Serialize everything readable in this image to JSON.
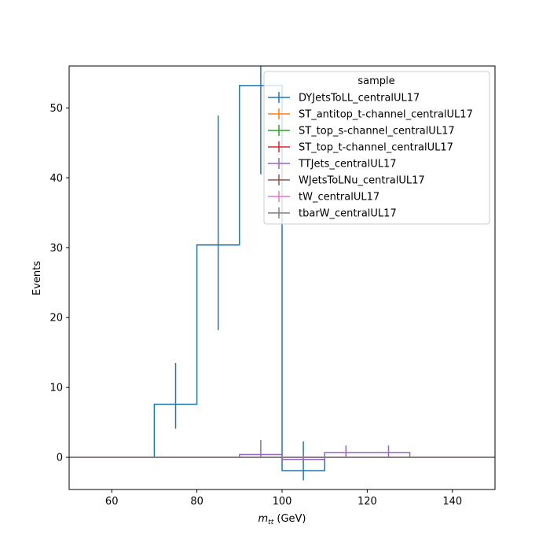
{
  "chart_data": {
    "type": "line",
    "xlabel_base": "m",
    "xlabel_sub": "tt",
    "xlabel_unit": " (GeV)",
    "ylabel": "Events",
    "xlim": [
      50,
      150
    ],
    "ylim": [
      -4.6,
      56
    ],
    "xticks": [
      60,
      80,
      100,
      120,
      140
    ],
    "yticks": [
      0,
      10,
      20,
      30,
      40,
      50
    ],
    "legend_title": "sample",
    "legend_position": "top-right",
    "grid": false,
    "series": [
      {
        "name": "DYJetsToLL_centralUL17",
        "color": "#1f77b4",
        "edges": [
          50,
          70,
          80,
          90,
          100,
          110,
          150
        ],
        "values": [
          0,
          7.6,
          30.4,
          53.2,
          -1.9,
          0
        ],
        "errors": [
          {
            "x": 75,
            "y": 7.6,
            "lo": 4.1,
            "hi": 13.5
          },
          {
            "x": 85,
            "y": 30.4,
            "lo": 18.2,
            "hi": 48.9
          },
          {
            "x": 95,
            "y": 53.2,
            "lo": 40.5,
            "hi": 56
          },
          {
            "x": 105,
            "y": -1.9,
            "lo": -3.3,
            "hi": 2.3
          }
        ]
      },
      {
        "name": "ST_antitop_t-channel_centralUL17",
        "color": "#ff7f0e",
        "edges": [
          50,
          150
        ],
        "values": [
          0
        ],
        "errors": []
      },
      {
        "name": "ST_top_s-channel_centralUL17",
        "color": "#2ca02c",
        "edges": [
          50,
          150
        ],
        "values": [
          0
        ],
        "errors": []
      },
      {
        "name": "ST_top_t-channel_centralUL17",
        "color": "#d62728",
        "edges": [
          50,
          150
        ],
        "values": [
          0
        ],
        "errors": []
      },
      {
        "name": "TTJets_centralUL17",
        "color": "#9467bd",
        "edges": [
          50,
          90,
          100,
          110,
          120,
          130,
          150
        ],
        "values": [
          0,
          0.4,
          -0.3,
          0.7,
          0.7,
          0
        ],
        "errors": [
          {
            "x": 95,
            "y": 0.4,
            "lo": 0.0,
            "hi": 2.5
          },
          {
            "x": 105,
            "y": -0.3,
            "lo": -0.5,
            "hi": 0.5
          },
          {
            "x": 115,
            "y": 0.7,
            "lo": 0.0,
            "hi": 1.7
          },
          {
            "x": 125,
            "y": 0.7,
            "lo": 0.0,
            "hi": 1.7
          }
        ]
      },
      {
        "name": "WJetsToLNu_centralUL17",
        "color": "#8c564b",
        "edges": [
          50,
          150
        ],
        "values": [
          0
        ],
        "errors": []
      },
      {
        "name": "tW_centralUL17",
        "color": "#e377c2",
        "edges": [
          50,
          150
        ],
        "values": [
          0
        ],
        "errors": []
      },
      {
        "name": "tbarW_centralUL17",
        "color": "#7f7f7f",
        "edges": [
          50,
          150
        ],
        "values": [
          0
        ],
        "errors": []
      }
    ]
  }
}
